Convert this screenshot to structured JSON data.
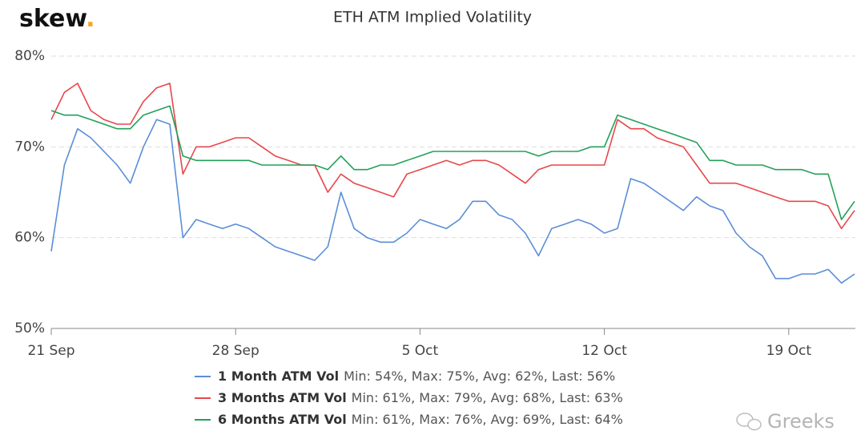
{
  "chart_data": {
    "type": "line",
    "title": "ETH ATM Implied Volatility",
    "logo": "skew",
    "logo_dot": ".",
    "watermark": "Greeks",
    "categories": [
      "21 Sep",
      null,
      null,
      null,
      null,
      null,
      null,
      null,
      null,
      null,
      null,
      null,
      null,
      null,
      "28 Sep",
      null,
      null,
      null,
      null,
      null,
      null,
      null,
      null,
      null,
      null,
      null,
      null,
      null,
      "5 Oct",
      null,
      null,
      null,
      null,
      null,
      null,
      null,
      null,
      null,
      null,
      null,
      null,
      null,
      "12 Oct",
      null,
      null,
      null,
      null,
      null,
      null,
      null,
      null,
      null,
      null,
      null,
      null,
      null,
      "19 Oct",
      null,
      null,
      null,
      null,
      null
    ],
    "ylim": [
      50,
      80
    ],
    "yticks": [
      {
        "value": 50,
        "label": "50%"
      },
      {
        "value": 60,
        "label": "60%"
      },
      {
        "value": 70,
        "label": "70%"
      },
      {
        "value": 80,
        "label": "80%"
      }
    ],
    "grid": true,
    "series": [
      {
        "name": "1 Month ATM Vol",
        "stats": "Min: 54%, Max: 75%, Avg: 62%, Last: 56%",
        "color": "#5b8ed6",
        "values": [
          58.5,
          68,
          72,
          71,
          69.5,
          68,
          66,
          70,
          73,
          72.5,
          60,
          62,
          61.5,
          61,
          61.5,
          61,
          60,
          59,
          58.5,
          58,
          57.5,
          59,
          65,
          61,
          60,
          59.5,
          59.5,
          60.5,
          62,
          61.5,
          61,
          62,
          64,
          64,
          62.5,
          62,
          60.5,
          58,
          61,
          61.5,
          62,
          61.5,
          60.5,
          61,
          66.5,
          66,
          65,
          64,
          63,
          64.5,
          63.5,
          63,
          60.5,
          59,
          58,
          55.5,
          55.5,
          56,
          56,
          56.5,
          55,
          56
        ]
      },
      {
        "name": "3 Months ATM Vol",
        "stats": "Min: 61%, Max: 79%, Avg: 68%, Last: 63%",
        "color": "#e8474a",
        "values": [
          73,
          76,
          77,
          74,
          73,
          72.5,
          72.5,
          75,
          76.5,
          77,
          67,
          70,
          70,
          70.5,
          71,
          71,
          70,
          69,
          68.5,
          68,
          68,
          65,
          67,
          66,
          65.5,
          65,
          64.5,
          67,
          67.5,
          68,
          68.5,
          68,
          68.5,
          68.5,
          68,
          67,
          66,
          67.5,
          68,
          68,
          68,
          68,
          68,
          73,
          72,
          72,
          71,
          70.5,
          70,
          68,
          66,
          66,
          66,
          65.5,
          65,
          64.5,
          64,
          64,
          64,
          63.5,
          61,
          63
        ]
      },
      {
        "name": "6 Months ATM Vol",
        "stats": "Min: 61%, Max: 76%, Avg: 69%, Last: 64%",
        "color": "#23a05a",
        "values": [
          74,
          73.5,
          73.5,
          73,
          72.5,
          72,
          72,
          73.5,
          74,
          74.5,
          69,
          68.5,
          68.5,
          68.5,
          68.5,
          68.5,
          68,
          68,
          68,
          68,
          68,
          67.5,
          69,
          67.5,
          67.5,
          68,
          68,
          68.5,
          69,
          69.5,
          69.5,
          69.5,
          69.5,
          69.5,
          69.5,
          69.5,
          69.5,
          69,
          69.5,
          69.5,
          69.5,
          70,
          70,
          73.5,
          73,
          72.5,
          72,
          71.5,
          71,
          70.5,
          68.5,
          68.5,
          68,
          68,
          68,
          67.5,
          67.5,
          67.5,
          67,
          67,
          62,
          64
        ]
      }
    ]
  }
}
